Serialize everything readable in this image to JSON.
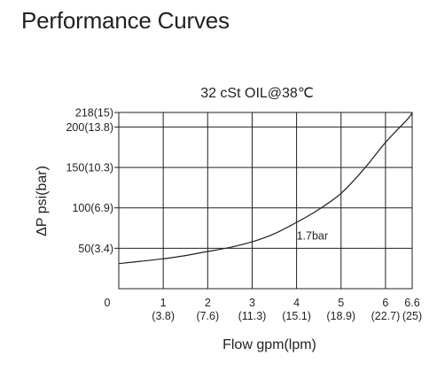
{
  "page": {
    "title": "Performance Curves"
  },
  "chart_data": {
    "type": "line",
    "title": "32 cSt OIL@38℃",
    "xlabel": "Flow gpm(lpm)",
    "ylabel": "ΔP psi(bar)",
    "xlim": [
      0,
      6.6
    ],
    "ylim": [
      0,
      218
    ],
    "grid": true,
    "x_origin_label": "0",
    "x_ticks": [
      {
        "value": 1,
        "label": "1",
        "sublabel": "(3.8)"
      },
      {
        "value": 2,
        "label": "2",
        "sublabel": "(7.6)"
      },
      {
        "value": 3,
        "label": "3",
        "sublabel": "(11.3)"
      },
      {
        "value": 4,
        "label": "4",
        "sublabel": "(15.1)"
      },
      {
        "value": 5,
        "label": "5",
        "sublabel": "(18.9)"
      },
      {
        "value": 6,
        "label": "6",
        "sublabel": "(22.7)"
      },
      {
        "value": 6.6,
        "label": "6.6",
        "sublabel": "(25)"
      }
    ],
    "y_ticks": [
      {
        "value": 50,
        "label": "50(3.4)"
      },
      {
        "value": 100,
        "label": "100(6.9)"
      },
      {
        "value": 150,
        "label": "150(10.3)"
      },
      {
        "value": 200,
        "label": "200(13.8)"
      },
      {
        "value": 218,
        "label": "218(15)"
      }
    ],
    "series": [
      {
        "x": [
          0,
          0.5,
          1.0,
          1.5,
          2.0,
          2.5,
          3.0,
          3.5,
          4.0,
          4.5,
          5.0,
          5.5,
          6.0,
          6.5,
          6.6
        ],
        "y": [
          31,
          34,
          37,
          41,
          46,
          51,
          58,
          68,
          82,
          98,
          118,
          147,
          181,
          210,
          218
        ]
      }
    ],
    "annotations": [
      {
        "text": "1.7bar",
        "x": 4.0,
        "y": 65
      }
    ]
  }
}
